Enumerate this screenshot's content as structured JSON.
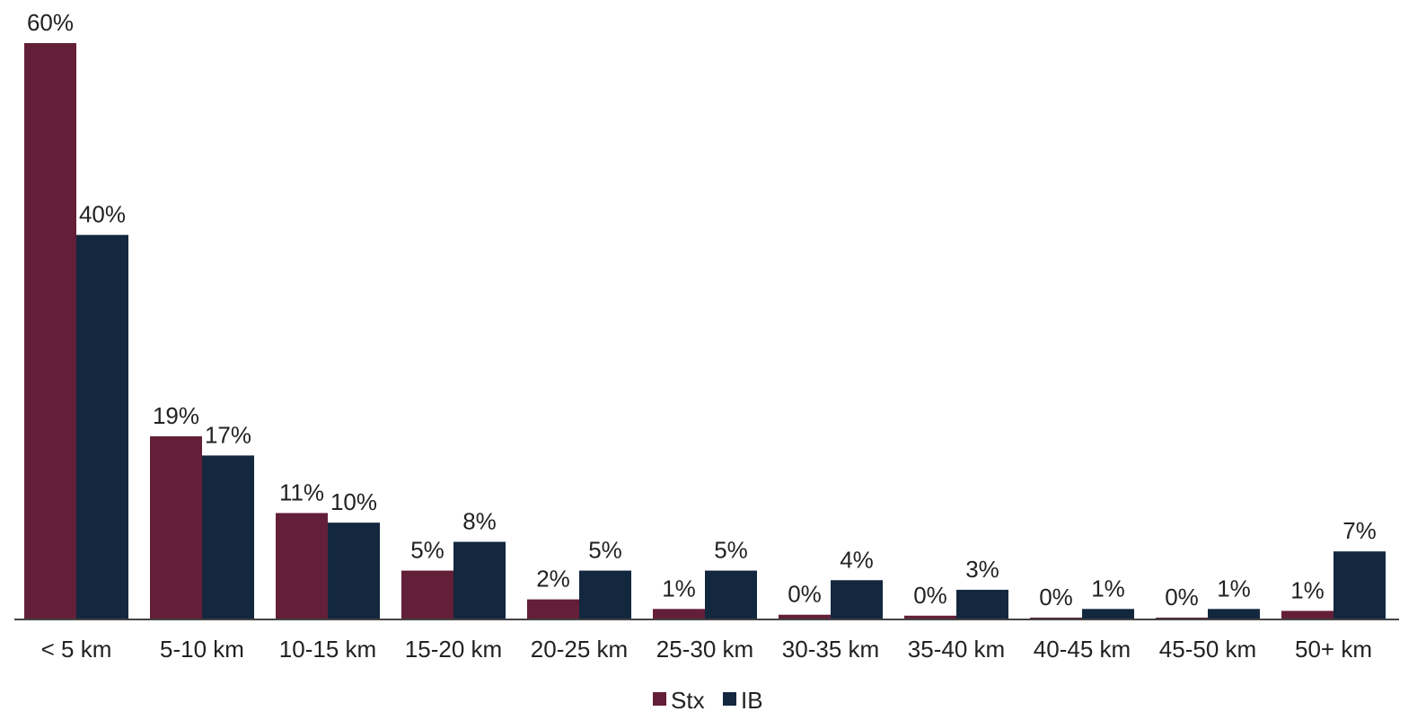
{
  "chart_data": {
    "type": "bar",
    "title": "",
    "xlabel": "",
    "ylabel": "",
    "categories": [
      "< 5 km",
      "5-10 km",
      "10-15 km",
      "15-20 km",
      "20-25 km",
      "25-30 km",
      "30-35 km",
      "35-40 km",
      "40-45 km",
      "45-50 km",
      "50+ km"
    ],
    "series": [
      {
        "name": "Stx",
        "color": "#641f38",
        "values": [
          60,
          19,
          11,
          5,
          2,
          1,
          0.4,
          0.3,
          0.1,
          0.1,
          0.8
        ],
        "labels": [
          "60%",
          "19%",
          "11%",
          "5%",
          "2%",
          "1%",
          "0%",
          "0%",
          "0%",
          "0%",
          "1%"
        ]
      },
      {
        "name": "IB",
        "color": "#13283f",
        "values": [
          40,
          17,
          10,
          8,
          5,
          5,
          4,
          3,
          1,
          1,
          7
        ],
        "labels": [
          "40%",
          "17%",
          "10%",
          "8%",
          "5%",
          "5%",
          "4%",
          "3%",
          "1%",
          "1%",
          "7%"
        ]
      }
    ],
    "ylim": [
      0,
      60
    ],
    "grid": false,
    "legend": "bottom-center"
  }
}
